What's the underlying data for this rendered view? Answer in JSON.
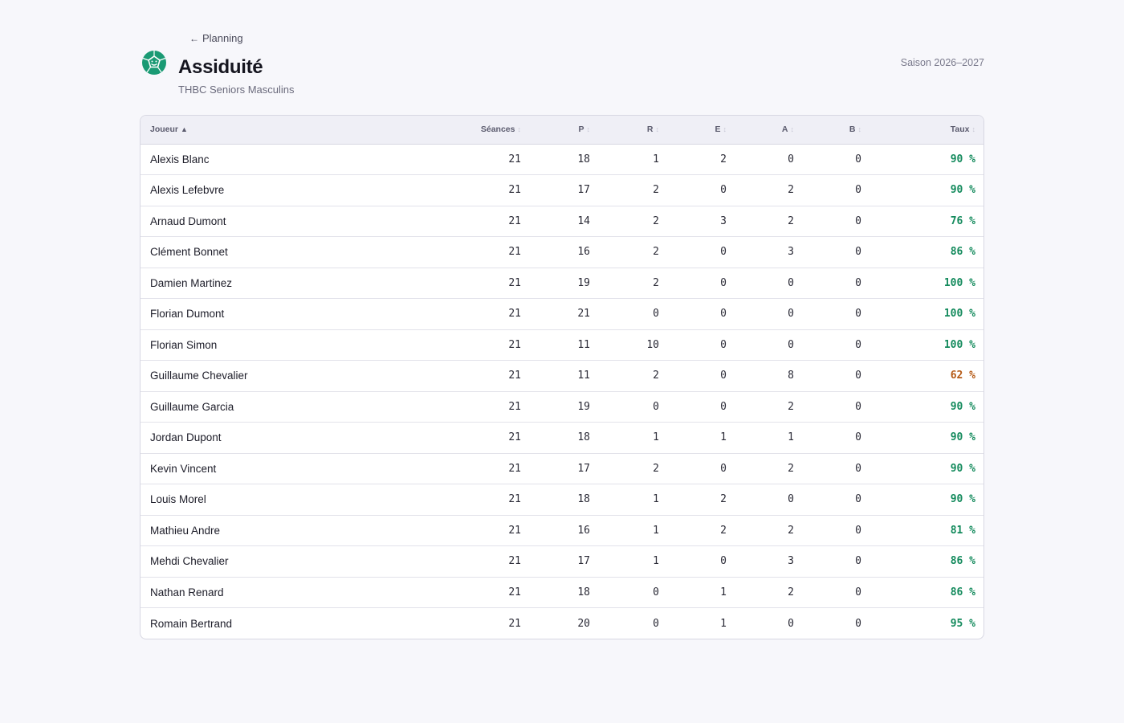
{
  "nav": {
    "back_label": "Planning"
  },
  "header": {
    "title": "Assiduité",
    "team": "THBC Seniors Masculins",
    "season": "Saison 2026–2027"
  },
  "colors": {
    "accent": "#1a9a74",
    "rate_good": "#138a5c",
    "rate_warn": "#b55a16"
  },
  "table": {
    "columns": [
      {
        "key": "player",
        "label": "Joueur",
        "sort": "asc"
      },
      {
        "key": "sessions",
        "label": "Séances",
        "sort": "none"
      },
      {
        "key": "p",
        "label": "P",
        "sort": "none"
      },
      {
        "key": "r",
        "label": "R",
        "sort": "none"
      },
      {
        "key": "e",
        "label": "E",
        "sort": "none"
      },
      {
        "key": "a",
        "label": "A",
        "sort": "none"
      },
      {
        "key": "b",
        "label": "B",
        "sort": "none"
      },
      {
        "key": "rate",
        "label": "Taux",
        "sort": "none"
      }
    ],
    "rows": [
      {
        "player": "Alexis Blanc",
        "sessions": "21",
        "p": "18",
        "r": "1",
        "e": "2",
        "a": "0",
        "b": "0",
        "rate": "90 %",
        "status": "good"
      },
      {
        "player": "Alexis Lefebvre",
        "sessions": "21",
        "p": "17",
        "r": "2",
        "e": "0",
        "a": "2",
        "b": "0",
        "rate": "90 %",
        "status": "good"
      },
      {
        "player": "Arnaud Dumont",
        "sessions": "21",
        "p": "14",
        "r": "2",
        "e": "3",
        "a": "2",
        "b": "0",
        "rate": "76 %",
        "status": "good"
      },
      {
        "player": "Clément Bonnet",
        "sessions": "21",
        "p": "16",
        "r": "2",
        "e": "0",
        "a": "3",
        "b": "0",
        "rate": "86 %",
        "status": "good"
      },
      {
        "player": "Damien Martinez",
        "sessions": "21",
        "p": "19",
        "r": "2",
        "e": "0",
        "a": "0",
        "b": "0",
        "rate": "100 %",
        "status": "good"
      },
      {
        "player": "Florian Dumont",
        "sessions": "21",
        "p": "21",
        "r": "0",
        "e": "0",
        "a": "0",
        "b": "0",
        "rate": "100 %",
        "status": "good"
      },
      {
        "player": "Florian Simon",
        "sessions": "21",
        "p": "11",
        "r": "10",
        "e": "0",
        "a": "0",
        "b": "0",
        "rate": "100 %",
        "status": "good"
      },
      {
        "player": "Guillaume Chevalier",
        "sessions": "21",
        "p": "11",
        "r": "2",
        "e": "0",
        "a": "8",
        "b": "0",
        "rate": "62 %",
        "status": "warn"
      },
      {
        "player": "Guillaume Garcia",
        "sessions": "21",
        "p": "19",
        "r": "0",
        "e": "0",
        "a": "2",
        "b": "0",
        "rate": "90 %",
        "status": "good"
      },
      {
        "player": "Jordan Dupont",
        "sessions": "21",
        "p": "18",
        "r": "1",
        "e": "1",
        "a": "1",
        "b": "0",
        "rate": "90 %",
        "status": "good"
      },
      {
        "player": "Kevin Vincent",
        "sessions": "21",
        "p": "17",
        "r": "2",
        "e": "0",
        "a": "2",
        "b": "0",
        "rate": "90 %",
        "status": "good"
      },
      {
        "player": "Louis Morel",
        "sessions": "21",
        "p": "18",
        "r": "1",
        "e": "2",
        "a": "0",
        "b": "0",
        "rate": "90 %",
        "status": "good"
      },
      {
        "player": "Mathieu Andre",
        "sessions": "21",
        "p": "16",
        "r": "1",
        "e": "2",
        "a": "2",
        "b": "0",
        "rate": "81 %",
        "status": "good"
      },
      {
        "player": "Mehdi Chevalier",
        "sessions": "21",
        "p": "17",
        "r": "1",
        "e": "0",
        "a": "3",
        "b": "0",
        "rate": "86 %",
        "status": "good"
      },
      {
        "player": "Nathan Renard",
        "sessions": "21",
        "p": "18",
        "r": "0",
        "e": "1",
        "a": "2",
        "b": "0",
        "rate": "86 %",
        "status": "good"
      },
      {
        "player": "Romain Bertrand",
        "sessions": "21",
        "p": "20",
        "r": "0",
        "e": "1",
        "a": "0",
        "b": "0",
        "rate": "95 %",
        "status": "good"
      }
    ]
  }
}
